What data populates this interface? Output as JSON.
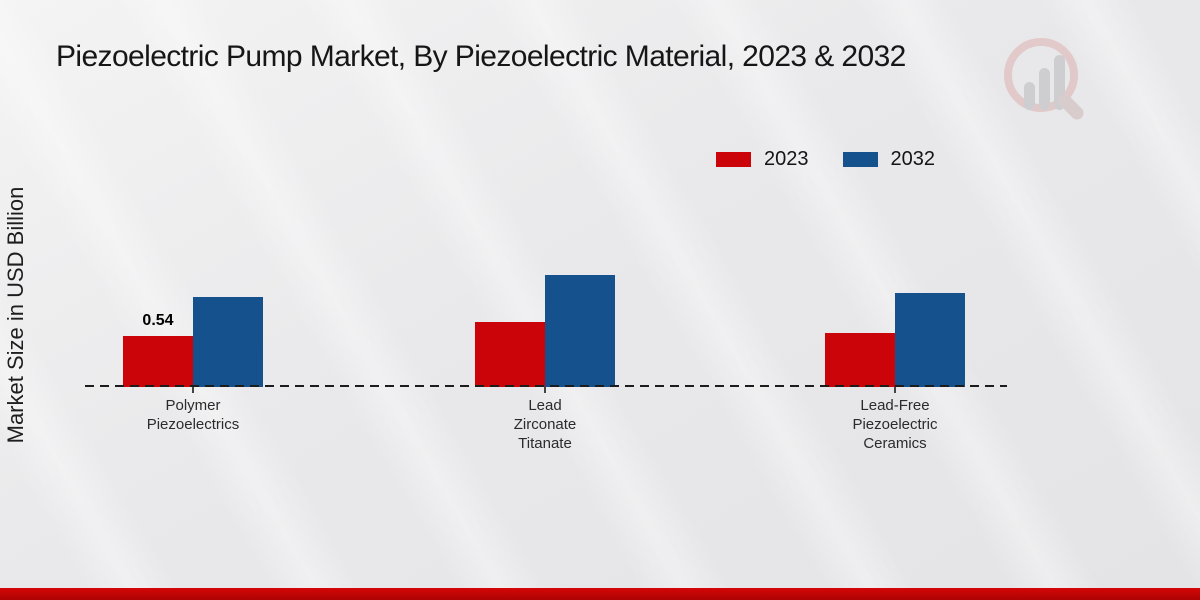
{
  "chart_data": {
    "type": "bar",
    "title": "Piezoelectric Pump Market, By Piezoelectric Material, 2023 & 2032",
    "xlabel": "",
    "ylabel": "Market Size in USD Billion",
    "categories": [
      "Polymer Piezoelectrics",
      "Lead Zirconate Titanate",
      "Lead-Free Piezoelectric Ceramics"
    ],
    "category_label_lines": [
      [
        "Polymer",
        "Piezoelectrics"
      ],
      [
        "Lead",
        "Zirconate",
        "Titanate"
      ],
      [
        "Lead-Free",
        "Piezoelectric",
        "Ceramics"
      ]
    ],
    "series": [
      {
        "name": "2023",
        "color": "#cb0409",
        "values": [
          0.54,
          0.69,
          0.57
        ]
      },
      {
        "name": "2032",
        "color": "#15518d",
        "values": [
          0.95,
          1.19,
          1.0
        ]
      }
    ],
    "data_labels": [
      {
        "series": "2023",
        "category_index": 0,
        "text": "0.54"
      }
    ],
    "ylim": [
      0,
      1.6
    ],
    "grid": false,
    "baseline_style": "dashed",
    "legend_position": "top-right"
  },
  "branding": {
    "watermark_icon": "magnifier-bar-chart-logo",
    "footer_bar_color": "#c10606"
  }
}
